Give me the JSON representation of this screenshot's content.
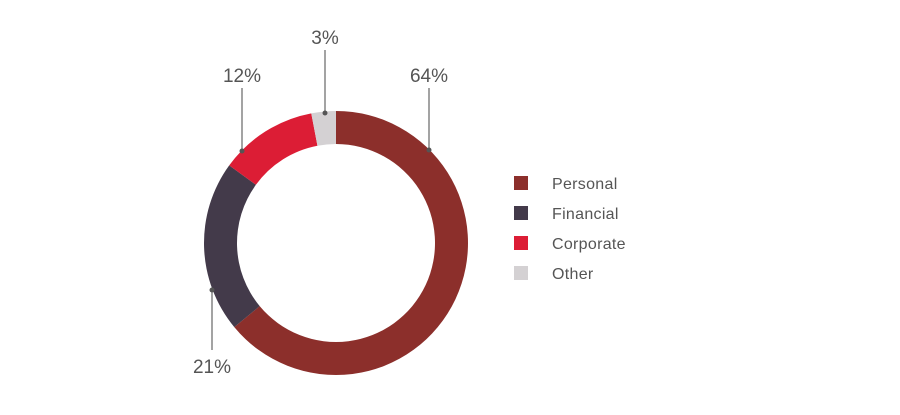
{
  "chart_data": {
    "type": "pie",
    "donut": true,
    "categories": [
      "Personal",
      "Financial",
      "Corporate",
      "Other"
    ],
    "values": [
      64,
      21,
      12,
      3
    ],
    "value_labels": [
      "64%",
      "21%",
      "12%",
      "3%"
    ],
    "colors": [
      "#8c2f2b",
      "#433a4a",
      "#dc1d35",
      "#d4d1d3"
    ],
    "legend": {
      "position": "right",
      "entries": [
        "Personal",
        "Financial",
        "Corporate",
        "Other"
      ]
    }
  }
}
